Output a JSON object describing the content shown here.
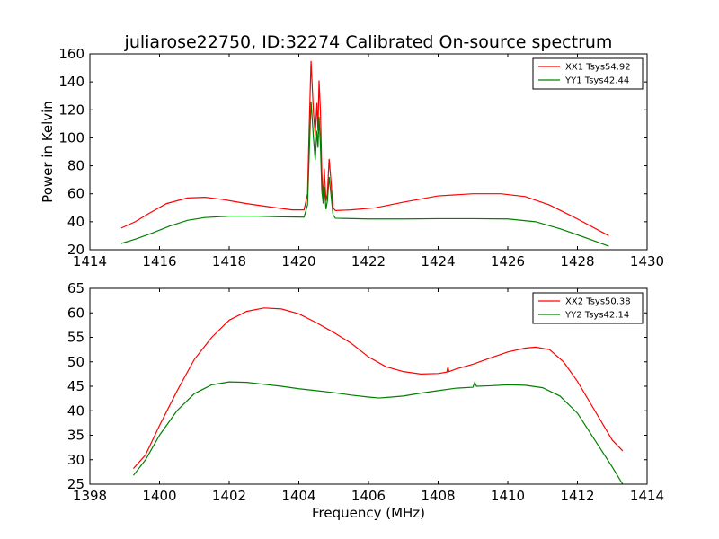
{
  "figure": {
    "title": "juliarose22750, ID:32274 Calibrated On-source spectrum"
  },
  "chart_data": [
    {
      "type": "line",
      "title": "juliarose22750, ID:32274 Calibrated On-source spectrum",
      "xlabel": "",
      "ylabel": "Power in Kelvin",
      "xlim": [
        1414,
        1430
      ],
      "ylim": [
        20,
        160
      ],
      "xticks": [
        1414,
        1416,
        1418,
        1420,
        1422,
        1424,
        1426,
        1428,
        1430
      ],
      "yticks": [
        20,
        40,
        60,
        80,
        100,
        120,
        140,
        160
      ],
      "grid": false,
      "legend_position": "top-right",
      "series": [
        {
          "name": "XX1 Tsys54.92",
          "color": "#ff0000",
          "points": [
            [
              1414.9,
              35.5
            ],
            [
              1415.3,
              40
            ],
            [
              1415.7,
              46
            ],
            [
              1416.2,
              53
            ],
            [
              1416.8,
              57
            ],
            [
              1417.3,
              57.5
            ],
            [
              1417.8,
              56
            ],
            [
              1418.5,
              53
            ],
            [
              1419.2,
              50.5
            ],
            [
              1419.8,
              48.5
            ],
            [
              1420.15,
              48.5
            ],
            [
              1420.25,
              60
            ],
            [
              1420.3,
              110
            ],
            [
              1420.35,
              155
            ],
            [
              1420.42,
              118
            ],
            [
              1420.47,
              102
            ],
            [
              1420.52,
              125
            ],
            [
              1420.55,
              105
            ],
            [
              1420.58,
              141
            ],
            [
              1420.62,
              120
            ],
            [
              1420.66,
              75
            ],
            [
              1420.7,
              56
            ],
            [
              1420.73,
              78
            ],
            [
              1420.78,
              55
            ],
            [
              1420.82,
              60
            ],
            [
              1420.87,
              85
            ],
            [
              1420.92,
              70
            ],
            [
              1420.98,
              50
            ],
            [
              1421.05,
              48
            ],
            [
              1421.5,
              48.5
            ],
            [
              1422.2,
              50
            ],
            [
              1423,
              54
            ],
            [
              1424,
              58.5
            ],
            [
              1425,
              60
            ],
            [
              1425.8,
              60
            ],
            [
              1426.5,
              58
            ],
            [
              1427.2,
              52
            ],
            [
              1428,
              42
            ],
            [
              1428.9,
              30
            ]
          ]
        },
        {
          "name": "YY1 Tsys42.44",
          "color": "#008000",
          "points": [
            [
              1414.9,
              24.5
            ],
            [
              1415.3,
              27.5
            ],
            [
              1415.8,
              32
            ],
            [
              1416.3,
              37
            ],
            [
              1416.8,
              41
            ],
            [
              1417.3,
              43
            ],
            [
              1418,
              44
            ],
            [
              1418.8,
              44
            ],
            [
              1419.5,
              43.5
            ],
            [
              1420.15,
              43.3
            ],
            [
              1420.25,
              52
            ],
            [
              1420.3,
              90
            ],
            [
              1420.35,
              126
            ],
            [
              1420.42,
              100
            ],
            [
              1420.47,
              84
            ],
            [
              1420.52,
              105
            ],
            [
              1420.55,
              93
            ],
            [
              1420.58,
              115
            ],
            [
              1420.62,
              95
            ],
            [
              1420.66,
              62
            ],
            [
              1420.7,
              53
            ],
            [
              1420.73,
              65
            ],
            [
              1420.78,
              49
            ],
            [
              1420.82,
              55
            ],
            [
              1420.87,
              72
            ],
            [
              1420.92,
              60
            ],
            [
              1420.98,
              45
            ],
            [
              1421.05,
              42.5
            ],
            [
              1422,
              42
            ],
            [
              1423,
              42
            ],
            [
              1424,
              42.2
            ],
            [
              1425,
              42.2
            ],
            [
              1426,
              42
            ],
            [
              1426.8,
              40
            ],
            [
              1427.5,
              35
            ],
            [
              1428.3,
              28
            ],
            [
              1428.9,
              22.5
            ]
          ]
        }
      ]
    },
    {
      "type": "line",
      "title": "",
      "xlabel": "Frequency (MHz)",
      "ylabel": "",
      "xlim": [
        1398,
        1414
      ],
      "ylim": [
        25,
        65
      ],
      "xticks": [
        1398,
        1400,
        1402,
        1404,
        1406,
        1408,
        1410,
        1412,
        1414
      ],
      "yticks": [
        25,
        30,
        35,
        40,
        45,
        50,
        55,
        60,
        65
      ],
      "grid": false,
      "legend_position": "top-right",
      "series": [
        {
          "name": "XX2 Tsys50.38",
          "color": "#ff0000",
          "points": [
            [
              1399.25,
              28.2
            ],
            [
              1399.6,
              31
            ],
            [
              1400,
              37
            ],
            [
              1400.5,
              44
            ],
            [
              1401,
              50.5
            ],
            [
              1401.5,
              55
            ],
            [
              1402,
              58.5
            ],
            [
              1402.5,
              60.3
            ],
            [
              1403,
              61
            ],
            [
              1403.5,
              60.8
            ],
            [
              1404,
              59.8
            ],
            [
              1404.5,
              58
            ],
            [
              1405,
              56
            ],
            [
              1405.5,
              53.8
            ],
            [
              1406,
              51
            ],
            [
              1406.5,
              49
            ],
            [
              1407,
              48
            ],
            [
              1407.5,
              47.5
            ],
            [
              1408,
              47.6
            ],
            [
              1408.25,
              47.9
            ],
            [
              1408.28,
              49
            ],
            [
              1408.31,
              48
            ],
            [
              1408.5,
              48.5
            ],
            [
              1409,
              49.5
            ],
            [
              1409.5,
              50.8
            ],
            [
              1410,
              52
            ],
            [
              1410.5,
              52.8
            ],
            [
              1410.8,
              53
            ],
            [
              1411.2,
              52.5
            ],
            [
              1411.6,
              50
            ],
            [
              1412,
              46
            ],
            [
              1412.5,
              40
            ],
            [
              1413,
              34
            ],
            [
              1413.3,
              31.8
            ]
          ]
        },
        {
          "name": "YY2 Tsys42.14",
          "color": "#008000",
          "points": [
            [
              1399.25,
              26.8
            ],
            [
              1399.6,
              30
            ],
            [
              1400,
              35
            ],
            [
              1400.5,
              40
            ],
            [
              1401,
              43.5
            ],
            [
              1401.5,
              45.3
            ],
            [
              1402,
              45.9
            ],
            [
              1402.5,
              45.8
            ],
            [
              1403,
              45.4
            ],
            [
              1403.5,
              45
            ],
            [
              1404,
              44.5
            ],
            [
              1404.5,
              44.1
            ],
            [
              1405,
              43.7
            ],
            [
              1405.5,
              43.2
            ],
            [
              1406,
              42.8
            ],
            [
              1406.3,
              42.6
            ],
            [
              1406.5,
              42.7
            ],
            [
              1407,
              43
            ],
            [
              1407.5,
              43.6
            ],
            [
              1408,
              44.1
            ],
            [
              1408.5,
              44.6
            ],
            [
              1409,
              44.8
            ],
            [
              1409.05,
              45.8
            ],
            [
              1409.1,
              45
            ],
            [
              1409.5,
              45.1
            ],
            [
              1410,
              45.3
            ],
            [
              1410.5,
              45.2
            ],
            [
              1411,
              44.7
            ],
            [
              1411.5,
              43
            ],
            [
              1412,
              39.5
            ],
            [
              1412.5,
              34
            ],
            [
              1413,
              28.5
            ],
            [
              1413.3,
              25
            ]
          ]
        }
      ]
    }
  ]
}
